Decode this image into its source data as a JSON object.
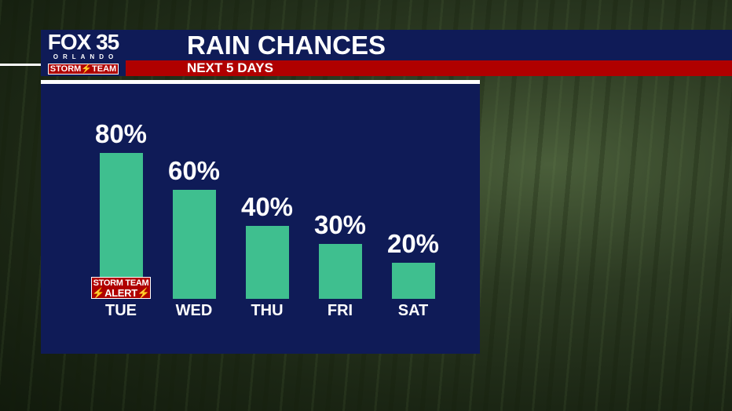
{
  "header": {
    "title": "RAIN CHANCES",
    "subtitle": "NEXT 5 DAYS"
  },
  "logo": {
    "line1": "FOX 35",
    "line2": "ORLANDO",
    "line3": "STORM⚡TEAM"
  },
  "badge": {
    "line1": "STORM TEAM",
    "line2": "⚡ALERT⚡",
    "day": "TUE"
  },
  "colors": {
    "bar": "#3fbf8f",
    "panel": "#0f1b57",
    "accent_red": "#b00000"
  },
  "chart_data": {
    "type": "bar",
    "title": "RAIN CHANCES",
    "subtitle": "NEXT 5 DAYS",
    "categories": [
      "TUE",
      "WED",
      "THU",
      "FRI",
      "SAT"
    ],
    "values": [
      80,
      60,
      40,
      30,
      20
    ],
    "labels": [
      "80%",
      "60%",
      "40%",
      "30%",
      "20%"
    ],
    "ylim": [
      0,
      100
    ],
    "grid": false
  }
}
